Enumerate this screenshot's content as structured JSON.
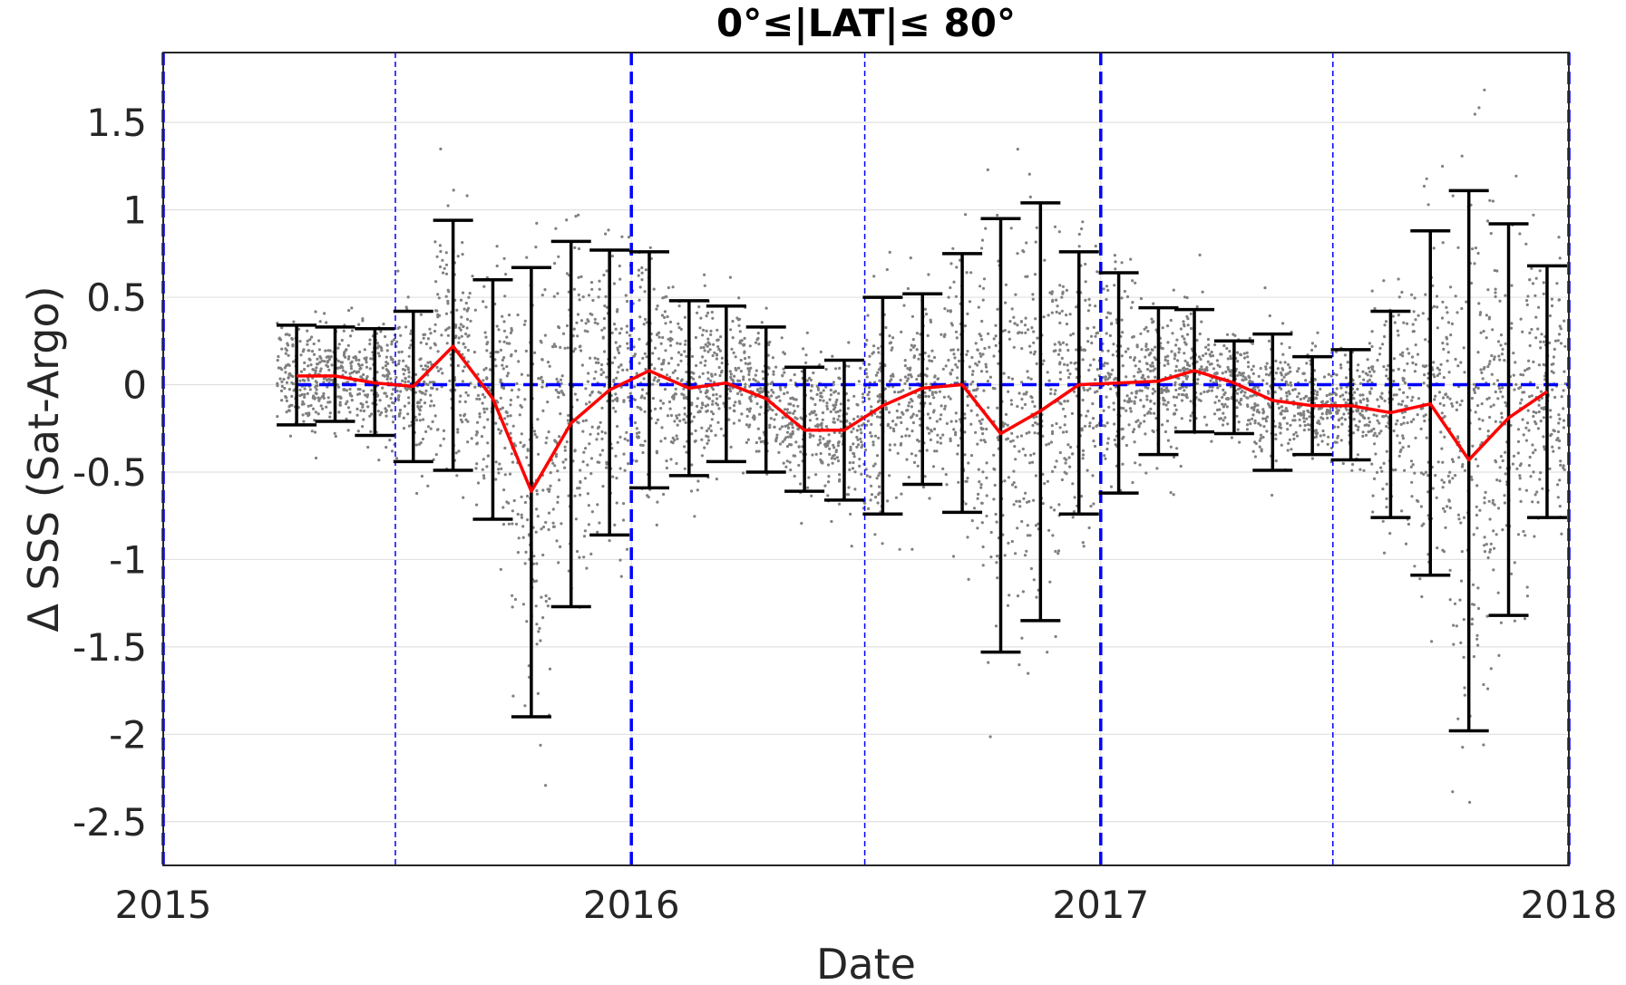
{
  "chart_data": {
    "type": "scatter",
    "title": "0°≤|LAT|≤ 80°",
    "xlabel": "Date",
    "ylabel": "Δ SSS (Sat-Argo)",
    "xlim": [
      "2015-01-01",
      "2018-01-01"
    ],
    "ylim": [
      -2.75,
      1.9
    ],
    "grid": true,
    "x_tick_labels": [
      "2015",
      "2016",
      "2017",
      "2018"
    ],
    "x_tick_dates": [
      "2015-01-01",
      "2016-01-01",
      "2017-01-01",
      "2018-01-01"
    ],
    "y_tick_labels": [
      "1.5",
      "1",
      "0.5",
      "0",
      "-0.5",
      "-1",
      "-1.5",
      "-2",
      "-2.5"
    ],
    "y_ticks": [
      1.5,
      1,
      0.5,
      0,
      -0.5,
      -1,
      -1.5,
      -2,
      -2.5
    ],
    "colors": {
      "mean_line": "#ff0000",
      "error_bars": "#000000",
      "scatter_points": "#808080",
      "reference_lines": "#0000ff",
      "grid": "#e0e0e0"
    },
    "reference_lines": {
      "zero_line_y": 0,
      "year_boundaries": [
        "2015-01-01",
        "2016-01-01",
        "2017-01-01",
        "2018-01-01"
      ],
      "mid_year_lines": [
        "2015-07-01",
        "2016-07-01",
        "2017-07-01"
      ]
    },
    "series": [
      {
        "type": "line_with_error_bars",
        "x": [
          "2015-04-15",
          "2015-05-15",
          "2015-06-15",
          "2015-07-15",
          "2015-08-15",
          "2015-09-15",
          "2015-10-15",
          "2015-11-15",
          "2015-12-15",
          "2016-01-15",
          "2016-02-15",
          "2016-03-15",
          "2016-04-15",
          "2016-05-15",
          "2016-06-15",
          "2016-07-15",
          "2016-08-15",
          "2016-09-15",
          "2016-10-15",
          "2016-11-15",
          "2016-12-15",
          "2017-01-15",
          "2017-02-15",
          "2017-03-15",
          "2017-04-15",
          "2017-05-15",
          "2017-06-15",
          "2017-07-15",
          "2017-08-15",
          "2017-09-15",
          "2017-10-15",
          "2017-11-15",
          "2017-12-15"
        ],
        "mean": [
          0.05,
          0.05,
          0.01,
          -0.01,
          0.22,
          -0.08,
          -0.61,
          -0.22,
          -0.03,
          0.08,
          -0.02,
          0.01,
          -0.08,
          -0.26,
          -0.26,
          -0.12,
          -0.02,
          0.0,
          -0.28,
          -0.15,
          0.0,
          0.01,
          0.02,
          0.08,
          0.01,
          -0.09,
          -0.12,
          -0.12,
          -0.16,
          -0.11,
          -0.43,
          -0.19,
          -0.04
        ],
        "upper": [
          0.34,
          0.33,
          0.32,
          0.42,
          0.94,
          0.6,
          0.67,
          0.82,
          0.77,
          0.76,
          0.48,
          0.45,
          0.33,
          0.1,
          0.14,
          0.5,
          0.52,
          0.75,
          0.95,
          1.04,
          0.76,
          0.64,
          0.44,
          0.43,
          0.25,
          0.29,
          0.16,
          0.2,
          0.42,
          0.88,
          1.11,
          0.92,
          0.68
        ],
        "lower": [
          -0.23,
          -0.21,
          -0.29,
          -0.44,
          -0.49,
          -0.77,
          -1.9,
          -1.27,
          -0.86,
          -0.59,
          -0.52,
          -0.44,
          -0.5,
          -0.61,
          -0.66,
          -0.74,
          -0.57,
          -0.73,
          -1.53,
          -1.35,
          -0.74,
          -0.62,
          -0.4,
          -0.27,
          -0.28,
          -0.49,
          -0.4,
          -0.43,
          -0.76,
          -1.09,
          -1.98,
          -1.32,
          -0.76
        ]
      }
    ]
  }
}
